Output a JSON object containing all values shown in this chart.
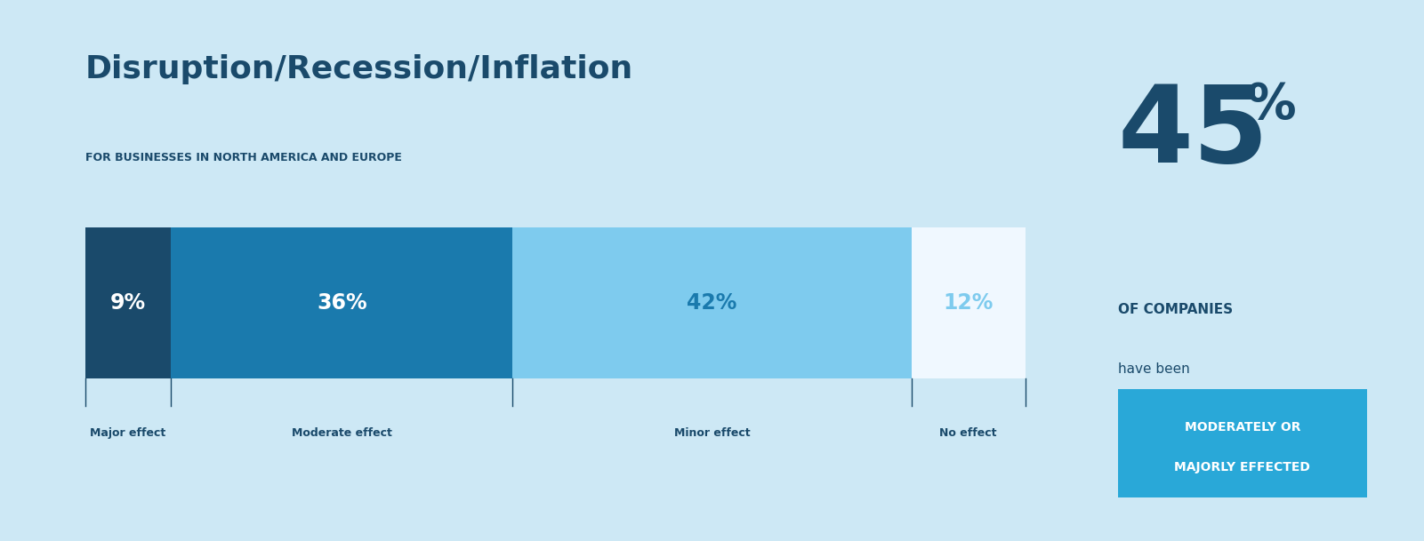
{
  "title": "Disruption/Recession/Inflation",
  "subtitle": "FOR BUSINESSES IN NORTH AMERICA AND EUROPE",
  "background_color": "#cde8f5",
  "bar_segments": [
    {
      "label": "Major effect",
      "value": 9,
      "pct": "9%",
      "color": "#1a4a6b"
    },
    {
      "label": "Moderate effect",
      "value": 36,
      "pct": "36%",
      "color": "#1a7aad"
    },
    {
      "label": "Minor effect",
      "value": 42,
      "pct": "42%",
      "color": "#7ecbee"
    },
    {
      "label": "No effect",
      "value": 12,
      "pct": "12%",
      "color": "#f0f8ff"
    }
  ],
  "bar_text_colors": [
    "#ffffff",
    "#ffffff",
    "#1a7aad",
    "#7ecbee"
  ],
  "stat_number": "45",
  "stat_symbol": "%",
  "stat_label1": "OF COMPANIES",
  "stat_label2": "have been",
  "stat_highlight_line1": "MODERATELY OR",
  "stat_highlight_line2": "MAJORLY EFFECTED",
  "stat_highlight_bg": "#29a8d8",
  "title_color": "#1a4a6b",
  "subtitle_color": "#1a4a6b",
  "label_color": "#1a4a6b",
  "stat_number_color": "#1a4a6b",
  "stat_label1_color": "#1a4a6b",
  "stat_label2_color": "#1a4a6b",
  "stat_highlight_text_color": "#ffffff"
}
